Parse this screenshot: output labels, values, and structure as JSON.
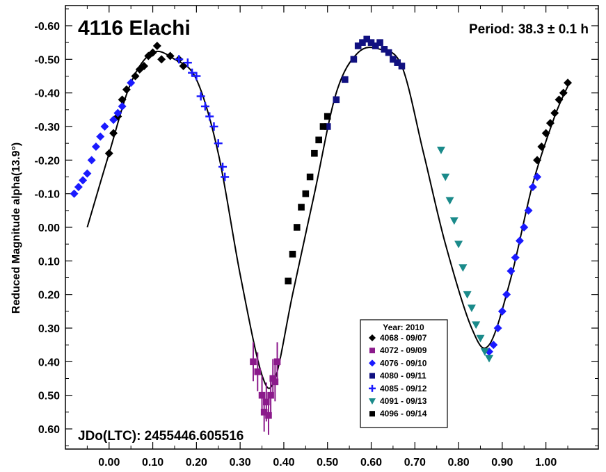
{
  "chart_data": {
    "type": "scatter",
    "title": "4116 Elachi",
    "period_label": "Period: 38.3 ± 0.1 h",
    "epoch_label": "JDo(LTC): 2455446.605516",
    "ylabel": "Reduced Magnitude alpha(13.9°)",
    "xlabel": "",
    "xlim": [
      -0.1,
      1.12
    ],
    "ylim": [
      0.66,
      -0.66
    ],
    "y_inverted": true,
    "x_ticks": [
      0.0,
      0.1,
      0.2,
      0.3,
      0.4,
      0.5,
      0.6,
      0.7,
      0.8,
      0.9,
      1.0
    ],
    "x_tick_labels": [
      "0.00",
      "0.10",
      "0.20",
      "0.30",
      "0.40",
      "0.50",
      "0.60",
      "0.70",
      "0.80",
      "0.90",
      "1.00"
    ],
    "y_ticks": [
      -0.6,
      -0.5,
      -0.4,
      -0.3,
      -0.2,
      -0.1,
      0.0,
      0.1,
      0.2,
      0.3,
      0.4,
      0.5,
      0.6
    ],
    "y_tick_labels": [
      "-0.60",
      "-0.50",
      "-0.40",
      "-0.30",
      "-0.20",
      "-0.10",
      "0.00",
      "0.10",
      "0.20",
      "0.30",
      "0.40",
      "0.50",
      "0.60"
    ],
    "grid": false,
    "legend": {
      "title": "Year: 2010",
      "placement": "bottom-center"
    },
    "fit_curve": [
      [
        -0.05,
        0.0
      ],
      [
        0.0,
        -0.22
      ],
      [
        0.05,
        -0.43
      ],
      [
        0.1,
        -0.52
      ],
      [
        0.15,
        -0.5
      ],
      [
        0.2,
        -0.44
      ],
      [
        0.25,
        -0.22
      ],
      [
        0.3,
        0.14
      ],
      [
        0.35,
        0.44
      ],
      [
        0.38,
        0.45
      ],
      [
        0.42,
        0.2
      ],
      [
        0.47,
        -0.1
      ],
      [
        0.52,
        -0.4
      ],
      [
        0.57,
        -0.52
      ],
      [
        0.62,
        -0.53
      ],
      [
        0.67,
        -0.48
      ],
      [
        0.72,
        -0.22
      ],
      [
        0.77,
        0.05
      ],
      [
        0.83,
        0.3
      ],
      [
        0.87,
        0.35
      ],
      [
        0.92,
        0.15
      ],
      [
        0.97,
        -0.13
      ],
      [
        1.02,
        -0.33
      ],
      [
        1.05,
        -0.42
      ]
    ],
    "series": [
      {
        "name": "4068 - 09/07",
        "color": "#000000",
        "marker": "diamond",
        "x": [
          0.0,
          0.01,
          0.02,
          0.03,
          0.04,
          0.06,
          0.07,
          0.08,
          0.09,
          0.1,
          0.11,
          0.12,
          0.14,
          0.16,
          0.17,
          0.98,
          0.99,
          1.0,
          1.01,
          1.02,
          1.03,
          1.04,
          1.05
        ],
        "y": [
          -0.22,
          -0.28,
          -0.33,
          -0.38,
          -0.41,
          -0.45,
          -0.47,
          -0.48,
          -0.51,
          -0.52,
          -0.54,
          -0.5,
          -0.51,
          -0.5,
          -0.48,
          -0.2,
          -0.24,
          -0.28,
          -0.31,
          -0.34,
          -0.38,
          -0.4,
          -0.43
        ]
      },
      {
        "name": "4072 - 09/09",
        "color": "#8b1a8b",
        "marker": "square",
        "x": [
          0.33,
          0.34,
          0.35,
          0.355,
          0.36,
          0.365,
          0.37,
          0.375,
          0.38,
          0.385
        ],
        "y": [
          0.4,
          0.43,
          0.5,
          0.55,
          0.52,
          0.56,
          0.5,
          0.45,
          0.46,
          0.4
        ]
      },
      {
        "name": "4076 - 09/10",
        "color": "#1a1aff",
        "marker": "diamond",
        "x": [
          -0.08,
          -0.07,
          -0.06,
          -0.05,
          -0.04,
          -0.03,
          -0.02,
          -0.01,
          0.01,
          0.02,
          0.03,
          0.05,
          0.87,
          0.88,
          0.89,
          0.9,
          0.91,
          0.92,
          0.93,
          0.94,
          0.95,
          0.96,
          0.97,
          0.98
        ],
        "y": [
          -0.1,
          -0.12,
          -0.14,
          -0.16,
          -0.2,
          -0.24,
          -0.27,
          -0.3,
          -0.32,
          -0.34,
          -0.36,
          -0.43,
          0.37,
          0.35,
          0.3,
          0.25,
          0.2,
          0.13,
          0.09,
          0.04,
          0.0,
          -0.05,
          -0.12,
          -0.15
        ]
      },
      {
        "name": "4080 - 09/11",
        "color": "#101080",
        "marker": "square",
        "x": [
          0.5,
          0.52,
          0.54,
          0.56,
          0.57,
          0.58,
          0.59,
          0.6,
          0.61,
          0.62,
          0.63,
          0.64,
          0.65,
          0.66,
          0.67
        ],
        "y": [
          -0.3,
          -0.38,
          -0.44,
          -0.5,
          -0.54,
          -0.55,
          -0.56,
          -0.55,
          -0.54,
          -0.55,
          -0.53,
          -0.52,
          -0.5,
          -0.49,
          -0.48
        ]
      },
      {
        "name": "4085 - 09/12",
        "color": "#1a1aff",
        "marker": "plus",
        "x": [
          0.16,
          0.18,
          0.19,
          0.2,
          0.21,
          0.22,
          0.23,
          0.24,
          0.25,
          0.26,
          0.265
        ],
        "y": [
          -0.5,
          -0.49,
          -0.46,
          -0.45,
          -0.39,
          -0.36,
          -0.33,
          -0.3,
          -0.25,
          -0.18,
          -0.15
        ]
      },
      {
        "name": "4091 - 09/13",
        "color": "#1a8a8a",
        "marker": "triangle-down",
        "x": [
          0.76,
          0.77,
          0.78,
          0.79,
          0.8,
          0.81,
          0.82,
          0.83,
          0.84,
          0.85,
          0.86,
          0.87
        ],
        "y": [
          -0.23,
          -0.15,
          -0.08,
          -0.02,
          0.05,
          0.12,
          0.2,
          0.24,
          0.29,
          0.33,
          0.37,
          0.39
        ]
      },
      {
        "name": "4096 - 09/14",
        "color": "#000000",
        "marker": "square",
        "x": [
          0.41,
          0.42,
          0.43,
          0.44,
          0.45,
          0.46,
          0.47,
          0.48,
          0.49,
          0.5
        ],
        "y": [
          0.16,
          0.08,
          -0.0,
          -0.06,
          -0.1,
          -0.15,
          -0.22,
          -0.26,
          -0.3,
          -0.33
        ]
      }
    ]
  }
}
